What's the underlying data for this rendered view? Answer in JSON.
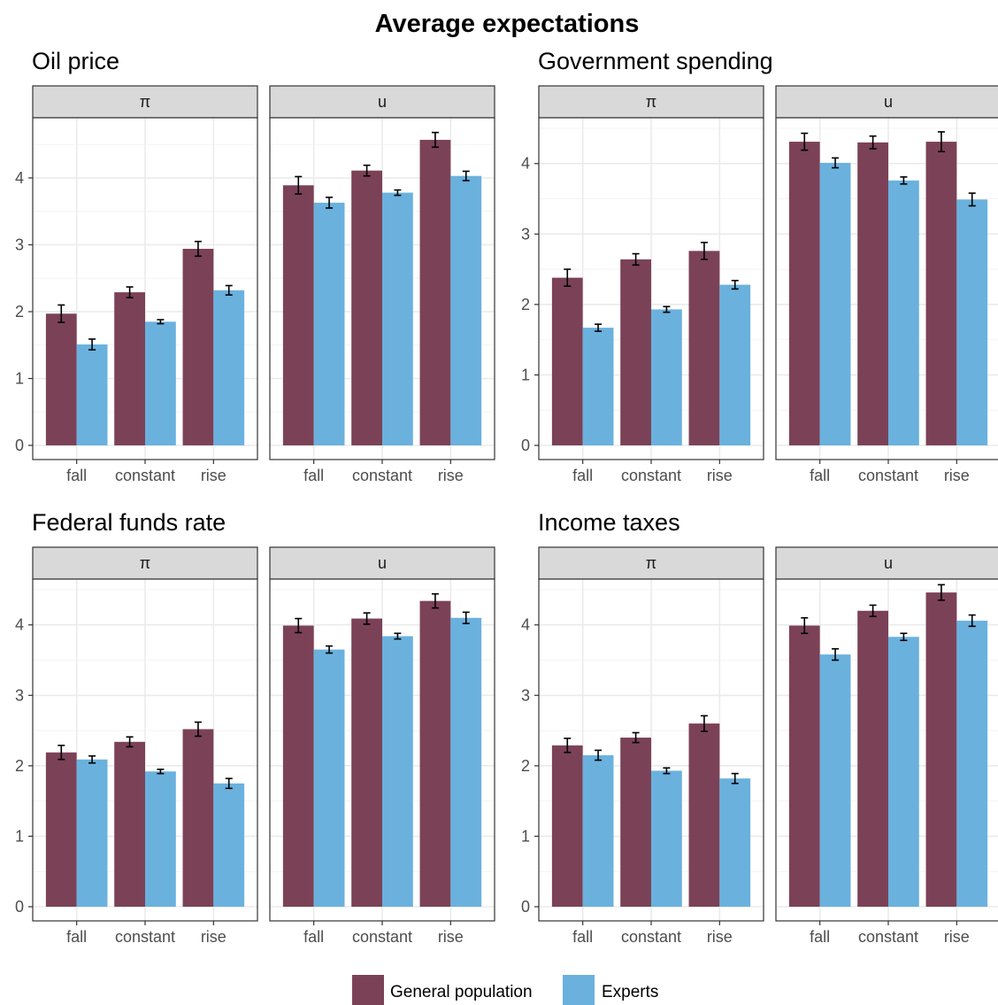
{
  "chart_data": {
    "type": "bar",
    "title": "Average expectations",
    "categories": [
      "fall",
      "constant",
      "rise"
    ],
    "series_names": [
      "General population",
      "Experts"
    ],
    "colors": {
      "General population": "#7b4257",
      "Experts": "#6ab1de"
    },
    "legend": {
      "position": "bottom",
      "items": [
        "General population",
        "Experts"
      ]
    },
    "grid": true,
    "groups": [
      {
        "title": "Oil price",
        "ylim": [
          0,
          4.9
        ],
        "yticks": [
          0,
          1,
          2,
          3,
          4
        ],
        "panels": [
          {
            "strip": "π",
            "series": [
              {
                "name": "General population",
                "values": [
                  1.97,
                  2.29,
                  2.94
                ],
                "errors": [
                  0.13,
                  0.08,
                  0.11
                ]
              },
              {
                "name": "Experts",
                "values": [
                  1.51,
                  1.85,
                  2.32
                ],
                "errors": [
                  0.08,
                  0.03,
                  0.07
                ]
              }
            ]
          },
          {
            "strip": "u",
            "series": [
              {
                "name": "General population",
                "values": [
                  3.89,
                  4.11,
                  4.57
                ],
                "errors": [
                  0.13,
                  0.08,
                  0.11
                ]
              },
              {
                "name": "Experts",
                "values": [
                  3.63,
                  3.78,
                  4.03
                ],
                "errors": [
                  0.08,
                  0.04,
                  0.07
                ]
              }
            ]
          }
        ]
      },
      {
        "title": "Government spending",
        "ylim": [
          0,
          4.65
        ],
        "yticks": [
          0,
          1,
          2,
          3,
          4
        ],
        "panels": [
          {
            "strip": "π",
            "series": [
              {
                "name": "General population",
                "values": [
                  2.38,
                  2.64,
                  2.76
                ],
                "errors": [
                  0.12,
                  0.08,
                  0.12
                ]
              },
              {
                "name": "Experts",
                "values": [
                  1.67,
                  1.93,
                  2.28
                ],
                "errors": [
                  0.05,
                  0.04,
                  0.06
                ]
              }
            ]
          },
          {
            "strip": "u",
            "series": [
              {
                "name": "General population",
                "values": [
                  4.31,
                  4.3,
                  4.31
                ],
                "errors": [
                  0.12,
                  0.09,
                  0.14
                ]
              },
              {
                "name": "Experts",
                "values": [
                  4.01,
                  3.76,
                  3.49
                ],
                "errors": [
                  0.07,
                  0.05,
                  0.09
                ]
              }
            ]
          }
        ]
      },
      {
        "title": "Federal funds rate",
        "ylim": [
          0,
          4.65
        ],
        "yticks": [
          0,
          1,
          2,
          3,
          4
        ],
        "panels": [
          {
            "strip": "π",
            "series": [
              {
                "name": "General population",
                "values": [
                  2.19,
                  2.34,
                  2.52
                ],
                "errors": [
                  0.1,
                  0.07,
                  0.1
                ]
              },
              {
                "name": "Experts",
                "values": [
                  2.09,
                  1.92,
                  1.75
                ],
                "errors": [
                  0.05,
                  0.03,
                  0.07
                ]
              }
            ]
          },
          {
            "strip": "u",
            "series": [
              {
                "name": "General population",
                "values": [
                  3.99,
                  4.09,
                  4.34
                ],
                "errors": [
                  0.1,
                  0.08,
                  0.1
                ]
              },
              {
                "name": "Experts",
                "values": [
                  3.65,
                  3.84,
                  4.1
                ],
                "errors": [
                  0.05,
                  0.04,
                  0.08
                ]
              }
            ]
          }
        ]
      },
      {
        "title": "Income taxes",
        "ylim": [
          0,
          4.65
        ],
        "yticks": [
          0,
          1,
          2,
          3,
          4
        ],
        "panels": [
          {
            "strip": "π",
            "series": [
              {
                "name": "General population",
                "values": [
                  2.29,
                  2.4,
                  2.6
                ],
                "errors": [
                  0.1,
                  0.07,
                  0.11
                ]
              },
              {
                "name": "Experts",
                "values": [
                  2.15,
                  1.93,
                  1.82
                ],
                "errors": [
                  0.07,
                  0.04,
                  0.07
                ]
              }
            ]
          },
          {
            "strip": "u",
            "series": [
              {
                "name": "General population",
                "values": [
                  3.99,
                  4.2,
                  4.46
                ],
                "errors": [
                  0.11,
                  0.08,
                  0.11
                ]
              },
              {
                "name": "Experts",
                "values": [
                  3.58,
                  3.83,
                  4.06
                ],
                "errors": [
                  0.08,
                  0.05,
                  0.08
                ]
              }
            ]
          }
        ]
      }
    ]
  }
}
